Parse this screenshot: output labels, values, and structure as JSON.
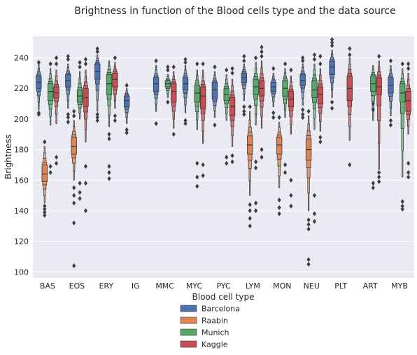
{
  "chart_data": {
    "type": "boxen",
    "title": "Brightness in function of the Blood cells type and the data source",
    "xlabel": "Blood cell type",
    "ylabel": "Brightness",
    "ylim": [
      96,
      254
    ],
    "yticks": [
      100,
      120,
      140,
      160,
      180,
      200,
      220,
      240
    ],
    "grid": true,
    "legend_position": "bottom-center",
    "categories": [
      "BAS",
      "EOS",
      "ERY",
      "IG",
      "MMC",
      "MYC",
      "PYC",
      "LYM",
      "MON",
      "NEU",
      "PLT",
      "ART",
      "MYB"
    ],
    "series": [
      {
        "name": "Barcelona",
        "color": "#4c72b0",
        "boxes": [
          {
            "category": "BAS",
            "q1": 220,
            "median": 224,
            "q3": 228,
            "lo": 206,
            "hi": 236,
            "outliers": [
              203,
              204,
              237
            ]
          },
          {
            "category": "EOS",
            "q1": 221,
            "median": 225,
            "q3": 229,
            "lo": 207,
            "hi": 236,
            "outliers": [
              198,
              201,
              203,
              239,
              241
            ]
          },
          {
            "category": "ERY",
            "q1": 226,
            "median": 231,
            "q3": 236,
            "lo": 205,
            "hi": 242,
            "outliers": [
              199,
              201,
              203,
              244,
              246
            ]
          },
          {
            "category": "IG",
            "q1": 208,
            "median": 212,
            "q3": 215,
            "lo": 197,
            "hi": 220,
            "outliers": [
              191,
              193,
              222
            ]
          },
          {
            "category": "MMC",
            "q1": 218,
            "median": 223,
            "q3": 227,
            "lo": 205,
            "hi": 235,
            "outliers": [
              197,
              238
            ]
          },
          {
            "category": "MYC",
            "q1": 219,
            "median": 223,
            "q3": 227,
            "lo": 204,
            "hi": 235,
            "outliers": [
              197,
              199,
              237,
              239
            ]
          },
          {
            "category": "PYC",
            "q1": 213,
            "median": 219,
            "q3": 224,
            "lo": 201,
            "hi": 231,
            "outliers": [
              196,
              234
            ]
          },
          {
            "category": "LYM",
            "q1": 224,
            "median": 227,
            "q3": 230,
            "lo": 212,
            "hi": 236,
            "outliers": [
              203,
              205,
              208,
              238,
              241
            ]
          },
          {
            "category": "MON",
            "q1": 218,
            "median": 221,
            "q3": 224,
            "lo": 208,
            "hi": 230,
            "outliers": [
              201,
              204,
              233
            ]
          },
          {
            "category": "NEU",
            "q1": 222,
            "median": 225,
            "q3": 229,
            "lo": 209,
            "hi": 236,
            "outliers": [
              201,
              203,
              206,
              238,
              240
            ]
          },
          {
            "category": "PLT",
            "q1": 229,
            "median": 234,
            "q3": 238,
            "lo": 214,
            "hi": 245,
            "outliers": [
              207,
              211,
              248,
              250,
              252
            ]
          },
          {
            "category": "ART",
            "q1": null,
            "median": null,
            "q3": null,
            "lo": null,
            "hi": null,
            "outliers": []
          },
          {
            "category": "MYB",
            "q1": 217,
            "median": 222,
            "q3": 227,
            "lo": 202,
            "hi": 235,
            "outliers": [
              196,
              199,
              238
            ]
          }
        ]
      },
      {
        "name": "Raabin",
        "color": "#dd8452",
        "boxes": [
          {
            "category": "BAS",
            "q1": 159,
            "median": 164,
            "q3": 170,
            "lo": 145,
            "hi": 182,
            "outliers": [
              137,
              139,
              141,
              143,
              185
            ]
          },
          {
            "category": "EOS",
            "q1": 177,
            "median": 182,
            "q3": 188,
            "lo": 160,
            "hi": 199,
            "outliers": [
              104,
              132,
              145,
              150,
              155,
              202,
              205
            ]
          },
          {
            "category": "ERY",
            "q1": null,
            "median": null,
            "q3": null,
            "lo": null,
            "hi": null,
            "outliers": []
          },
          {
            "category": "IG",
            "q1": null,
            "median": null,
            "q3": null,
            "lo": null,
            "hi": null,
            "outliers": []
          },
          {
            "category": "MMC",
            "q1": null,
            "median": null,
            "q3": null,
            "lo": null,
            "hi": null,
            "outliers": []
          },
          {
            "category": "MYC",
            "q1": null,
            "median": null,
            "q3": null,
            "lo": null,
            "hi": null,
            "outliers": []
          },
          {
            "category": "PYC",
            "q1": null,
            "median": null,
            "q3": null,
            "lo": null,
            "hi": null,
            "outliers": []
          },
          {
            "category": "LYM",
            "q1": 177,
            "median": 183,
            "q3": 189,
            "lo": 150,
            "hi": 205,
            "outliers": [
              130,
              135,
              140,
              144,
              208
            ]
          },
          {
            "category": "MON",
            "q1": 177,
            "median": 183,
            "q3": 188,
            "lo": 155,
            "hi": 198,
            "outliers": [
              138,
              142,
              147,
              201
            ]
          },
          {
            "category": "NEU",
            "q1": 173,
            "median": 180,
            "q3": 187,
            "lo": 140,
            "hi": 202,
            "outliers": [
              105,
              108,
              128,
              131,
              134,
              205
            ]
          },
          {
            "category": "PLT",
            "q1": null,
            "median": null,
            "q3": null,
            "lo": null,
            "hi": null,
            "outliers": []
          },
          {
            "category": "ART",
            "q1": null,
            "median": null,
            "q3": null,
            "lo": null,
            "hi": null,
            "outliers": []
          },
          {
            "category": "MYB",
            "q1": null,
            "median": null,
            "q3": null,
            "lo": null,
            "hi": null,
            "outliers": []
          }
        ]
      },
      {
        "name": "Munich",
        "color": "#55a868",
        "boxes": [
          {
            "category": "BAS",
            "q1": 212,
            "median": 218,
            "q3": 223,
            "lo": 196,
            "hi": 233,
            "outliers": [
              165,
              169,
              236
            ]
          },
          {
            "category": "EOS",
            "q1": 211,
            "median": 215,
            "q3": 219,
            "lo": 200,
            "hi": 231,
            "outliers": [
              148,
              152,
              158,
              234,
              237
            ]
          },
          {
            "category": "ERY",
            "q1": 216,
            "median": 223,
            "q3": 229,
            "lo": 195,
            "hi": 238,
            "outliers": [
              161,
              165,
              169,
              187,
              190
            ]
          },
          {
            "category": "IG",
            "q1": null,
            "median": null,
            "q3": null,
            "lo": null,
            "hi": null,
            "outliers": []
          },
          {
            "category": "MMC",
            "q1": 221,
            "median": 223,
            "q3": 225,
            "lo": 214,
            "hi": 229,
            "outliers": [
              211,
              232,
              234
            ]
          },
          {
            "category": "MYC",
            "q1": 211,
            "median": 217,
            "q3": 222,
            "lo": 193,
            "hi": 232,
            "outliers": [
              156,
              162,
              171,
              236
            ]
          },
          {
            "category": "PYC",
            "q1": 212,
            "median": 216,
            "q3": 220,
            "lo": 199,
            "hi": 229,
            "outliers": [
              171,
              175,
              232
            ]
          },
          {
            "category": "LYM",
            "q1": 216,
            "median": 221,
            "q3": 226,
            "lo": 196,
            "hi": 237,
            "outliers": [
              140,
              145,
              168,
              172,
              240
            ]
          },
          {
            "category": "MON",
            "q1": 215,
            "median": 220,
            "q3": 225,
            "lo": 201,
            "hi": 233,
            "outliers": [
              165,
              170,
              236
            ]
          },
          {
            "category": "NEU",
            "q1": 214,
            "median": 219,
            "q3": 225,
            "lo": 193,
            "hi": 236,
            "outliers": [
              133,
              138,
              150,
              239,
              242
            ]
          },
          {
            "category": "PLT",
            "q1": null,
            "median": null,
            "q3": null,
            "lo": null,
            "hi": null,
            "outliers": []
          },
          {
            "category": "ART",
            "q1": 218,
            "median": 223,
            "q3": 228,
            "lo": 199,
            "hi": 235,
            "outliers": [
              155,
              158,
              206,
              210
            ]
          },
          {
            "category": "MYB",
            "q1": 211,
            "median": 217,
            "q3": 223,
            "lo": 162,
            "hi": 233,
            "outliers": [
              141,
              143,
              146,
              236
            ]
          }
        ]
      },
      {
        "name": "Kaggle",
        "color": "#c44e52",
        "boxes": [
          {
            "category": "BAS",
            "q1": 214,
            "median": 217,
            "q3": 221,
            "lo": 197,
            "hi": 232,
            "outliers": [
              171,
              175,
              236,
              240
            ]
          },
          {
            "category": "EOS",
            "q1": 208,
            "median": 214,
            "q3": 220,
            "lo": 185,
            "hi": 232,
            "outliers": [
              140,
              158,
              169,
              236,
              239
            ]
          },
          {
            "category": "ERY",
            "q1": 221,
            "median": 226,
            "q3": 230,
            "lo": 207,
            "hi": 237,
            "outliers": [
              199,
              202,
              240
            ]
          },
          {
            "category": "IG",
            "q1": null,
            "median": null,
            "q3": null,
            "lo": null,
            "hi": null,
            "outliers": []
          },
          {
            "category": "MMC",
            "q1": 211,
            "median": 218,
            "q3": 223,
            "lo": 194,
            "hi": 231,
            "outliers": [
              190,
              234
            ]
          },
          {
            "category": "MYC",
            "q1": 207,
            "median": 215,
            "q3": 221,
            "lo": 184,
            "hi": 232,
            "outliers": [
              163,
              170,
              236
            ]
          },
          {
            "category": "PYC",
            "q1": 202,
            "median": 208,
            "q3": 214,
            "lo": 182,
            "hi": 226,
            "outliers": [
              172,
              176,
              230,
              233
            ]
          },
          {
            "category": "LYM",
            "q1": 215,
            "median": 220,
            "q3": 225,
            "lo": 194,
            "hi": 238,
            "outliers": [
              175,
              180,
              241,
              244,
              247
            ]
          },
          {
            "category": "MON",
            "q1": 208,
            "median": 213,
            "q3": 218,
            "lo": 190,
            "hi": 228,
            "outliers": [
              143,
              150,
              160,
              232
            ]
          },
          {
            "category": "NEU",
            "q1": 210,
            "median": 216,
            "q3": 221,
            "lo": 192,
            "hi": 233,
            "outliers": [
              185,
              188,
              236,
              241
            ]
          },
          {
            "category": "PLT",
            "q1": 212,
            "median": 220,
            "q3": 228,
            "lo": 186,
            "hi": 240,
            "outliers": [
              170,
              242,
              246
            ]
          },
          {
            "category": "ART",
            "q1": 216,
            "median": 221,
            "q3": 227,
            "lo": 167,
            "hi": 238,
            "outliers": [
              159,
              162,
              165,
              241
            ]
          },
          {
            "category": "MYB",
            "q1": 205,
            "median": 212,
            "q3": 218,
            "lo": 190,
            "hi": 230,
            "outliers": [
              162,
              165,
              171,
              233,
              236
            ]
          }
        ]
      }
    ]
  }
}
